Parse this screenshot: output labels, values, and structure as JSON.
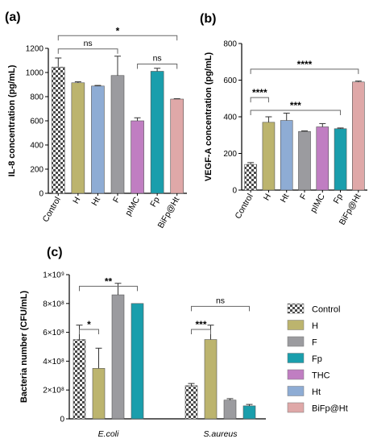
{
  "colors": {
    "Control": "#dcdcdc",
    "H": "#bcb46e",
    "Ht": "#8eacd4",
    "F": "#9b9b9f",
    "pIMC": "#c07ec2",
    "Fp": "#1a9eac",
    "BiFp@Ht": "#dfa8a8",
    "THC": "#c07ec2"
  },
  "chart_data": [
    {
      "id": "a",
      "type": "bar",
      "panel_label": "(a)",
      "ylabel": "IL-8 concentration (pg/mL)",
      "ylim": [
        0,
        1200
      ],
      "yticks": [
        "0",
        "200",
        "400",
        "600",
        "800",
        "1000",
        "1200"
      ],
      "ytick_values": [
        0,
        200,
        400,
        600,
        800,
        1000,
        1200
      ],
      "categories": [
        "Control",
        "H",
        "Ht",
        "F",
        "pIMC",
        "Fp",
        "BiFp@Ht"
      ],
      "values": [
        1045,
        915,
        888,
        975,
        600,
        1010,
        780
      ],
      "errors": [
        75,
        8,
        5,
        160,
        25,
        25,
        3
      ],
      "significance": [
        {
          "from": "Control",
          "to": "BiFp@Ht",
          "label": "*",
          "y": 1305
        },
        {
          "from": "Control",
          "to": "F",
          "label": "ns",
          "y": 1195
        },
        {
          "from": "pIMC",
          "to": "BiFp@Ht",
          "label": "ns",
          "y": 1070
        }
      ]
    },
    {
      "id": "b",
      "type": "bar",
      "panel_label": "(b)",
      "ylabel": "VEGF-A concentration (pg/mL)",
      "ylim": [
        0,
        800
      ],
      "yticks": [
        "0",
        "200",
        "400",
        "600",
        "800"
      ],
      "ytick_values": [
        0,
        200,
        400,
        600,
        800
      ],
      "categories": [
        "Control",
        "H",
        "Ht",
        "F",
        "pIMC",
        "Fp",
        "BiFp@Ht"
      ],
      "values": [
        140,
        370,
        380,
        320,
        345,
        335,
        590
      ],
      "errors": [
        10,
        30,
        40,
        3,
        18,
        4,
        5
      ],
      "significance": [
        {
          "from": "Control",
          "to": "BiFp@Ht",
          "label": "****",
          "y": 660
        },
        {
          "from": "Control",
          "to": "H",
          "label": "****",
          "y": 505
        },
        {
          "from": "Control",
          "to": "Fp",
          "label": "***",
          "y": 435
        }
      ]
    },
    {
      "id": "c",
      "type": "bar",
      "panel_label": "(c)",
      "ylabel": "Bacteria number  (CFU/mL)",
      "ylim": [
        0,
        1000000000
      ],
      "yticks": [
        "0",
        "2×10⁸",
        "4×10⁸",
        "6×10⁸",
        "8×10⁸",
        "1×10⁹"
      ],
      "ytick_values": [
        0,
        200000000,
        400000000,
        600000000,
        800000000,
        1000000000
      ],
      "groups": [
        "E.coli",
        "S.aureus"
      ],
      "series": [
        {
          "name": "Control",
          "values": [
            550000000,
            230000000
          ],
          "errors": [
            100000000,
            15000000
          ]
        },
        {
          "name": "H",
          "values": [
            350000000,
            550000000
          ],
          "errors": [
            140000000,
            100000000
          ]
        },
        {
          "name": "F",
          "values": [
            860000000,
            130000000
          ],
          "errors": [
            80000000,
            10000000
          ]
        },
        {
          "name": "Fp",
          "values": [
            800000000,
            90000000
          ],
          "errors": [
            0,
            10000000
          ]
        }
      ],
      "significance": [
        {
          "group": 0,
          "from": "Control",
          "to": "H",
          "label": "*",
          "y": 620000000
        },
        {
          "group": 0,
          "from": "Control",
          "to": "Fp",
          "label": "**",
          "y": 920000000
        },
        {
          "group": 1,
          "from": "Control",
          "to": "H",
          "label": "***",
          "y": 620000000
        },
        {
          "group": 1,
          "from": "Control",
          "to": "Fp",
          "label": "ns",
          "y": 780000000
        }
      ],
      "legend": [
        "Control",
        "H",
        "F",
        "Fp",
        "THC",
        "Ht",
        "BiFp@Ht"
      ]
    }
  ]
}
